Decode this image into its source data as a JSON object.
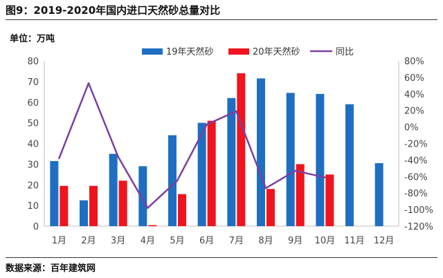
{
  "figure": {
    "title": "图9：2019-2020年国内进口天然砂总量对比",
    "unit": "单位：万吨",
    "source": "数据来源：百年建筑网"
  },
  "chart_data": {
    "type": "bar",
    "title": "",
    "categories": [
      "1月",
      "2月",
      "3月",
      "4月",
      "5月",
      "6月",
      "7月",
      "8月",
      "9月",
      "10月",
      "11月",
      "12月"
    ],
    "series": [
      {
        "name": "19年天然砂",
        "type": "bar",
        "axis": "left",
        "color": "#1e6fc1",
        "values": [
          31.5,
          12.5,
          35,
          29,
          44,
          50,
          62,
          71.5,
          64.5,
          64,
          59,
          30.5
        ]
      },
      {
        "name": "20年天然砂",
        "type": "bar",
        "axis": "left",
        "color": "#f0141e",
        "values": [
          19.5,
          19.5,
          22,
          0.5,
          15.5,
          51,
          74,
          18,
          30,
          25,
          null,
          null
        ]
      },
      {
        "name": "同比",
        "type": "line",
        "axis": "right",
        "color": "#7b3fa0",
        "values": [
          -38,
          53,
          -36,
          -98,
          -65,
          3,
          19,
          -74,
          -53,
          -61,
          null,
          null
        ]
      }
    ],
    "ylim_left": [
      0,
      80
    ],
    "yticks_left": [
      "0",
      "10",
      "20",
      "30",
      "40",
      "50",
      "60",
      "70",
      "80"
    ],
    "ylim_right": [
      -120,
      80
    ],
    "yticks_right": [
      "-120%",
      "-100%",
      "-80%",
      "-60%",
      "-40%",
      "-20%",
      "0%",
      "20%",
      "40%",
      "60%",
      "80%"
    ],
    "grid": false,
    "legend": "top"
  }
}
